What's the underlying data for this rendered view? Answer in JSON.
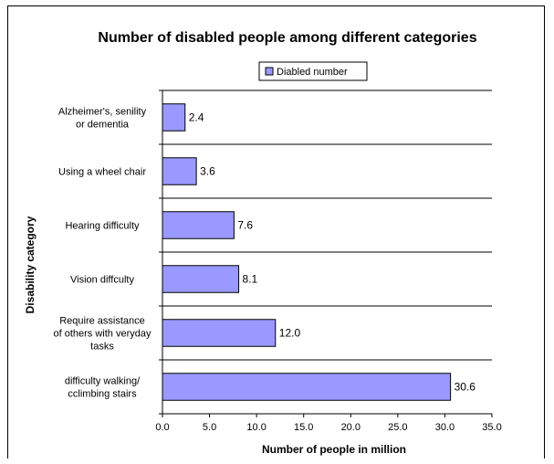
{
  "chart_data": {
    "type": "bar",
    "orientation": "horizontal",
    "title": "Number of disabled people among different categories",
    "xlabel": "Number of people in million",
    "ylabel": "Disability category",
    "legend": {
      "position": "top",
      "entries": [
        "Diabled number"
      ]
    },
    "categories": [
      "Alzheimer's, senility or dementia",
      "Using a wheel chair",
      "Hearing difficulty",
      "Vision diffculty",
      "Require assistance of others with veryday tasks",
      "difficulty walking/ cclimbing stairs"
    ],
    "category_lines": [
      [
        "Alzheimer's, senility",
        "or dementia"
      ],
      [
        "Using a wheel chair"
      ],
      [
        "Hearing difficulty"
      ],
      [
        "Vision diffculty"
      ],
      [
        "Require assistance",
        "of others with veryday",
        "tasks"
      ],
      [
        "difficulty walking/",
        "cclimbing stairs"
      ]
    ],
    "series": [
      {
        "name": "Diabled number",
        "values": [
          2.4,
          3.6,
          7.6,
          8.1,
          12.0,
          30.6
        ],
        "labels": [
          "2.4",
          "3.6",
          "7.6",
          "8.1",
          "12.0",
          "30.6"
        ]
      }
    ],
    "xlim": [
      0,
      35
    ],
    "xticks": [
      "0.0",
      "5.0",
      "10.0",
      "15.0",
      "20.0",
      "25.0",
      "30.0",
      "35.0"
    ],
    "grid": "horizontal lines between categories",
    "colors": {
      "bar_fill": "#9999ff",
      "bar_stroke": "#000000"
    }
  }
}
